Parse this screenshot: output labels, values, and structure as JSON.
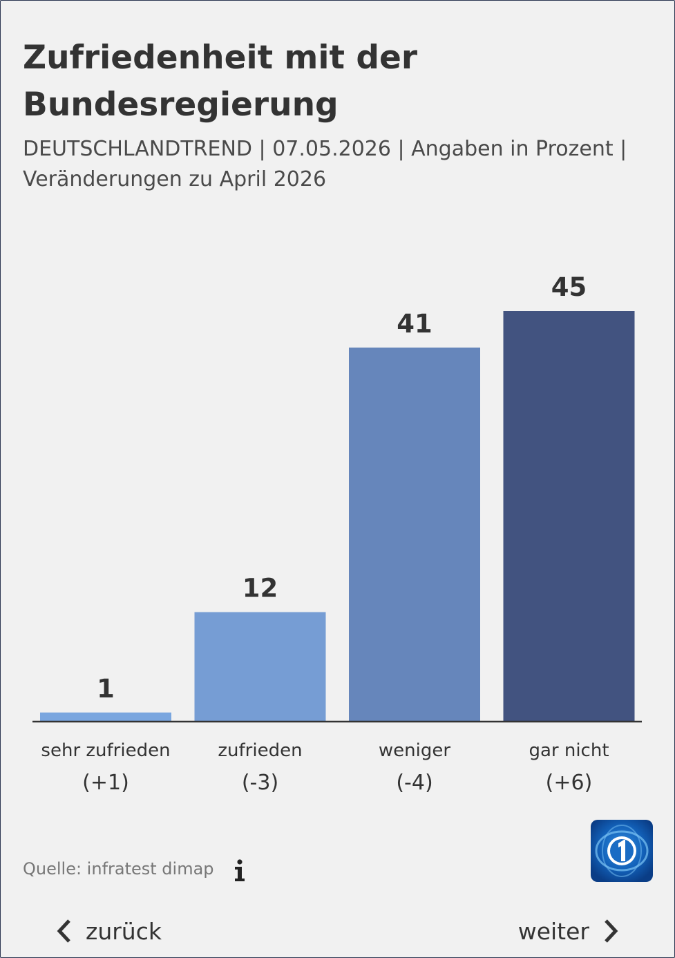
{
  "header": {
    "title": "Zufriedenheit mit der Bundesregierung",
    "subtitle": "DEUTSCHLANDTREND | 07.05.2026 | Angaben in Prozent | Veränderungen zu April 2026"
  },
  "chart_data": {
    "type": "bar",
    "categories": [
      "sehr zufrieden",
      "zufrieden",
      "weniger",
      "gar nicht"
    ],
    "changes": [
      "(+1)",
      "(-3)",
      "(-4)",
      "(+6)"
    ],
    "values": [
      1,
      12,
      41,
      45
    ],
    "value_labels": [
      "1",
      "12",
      "41",
      "45"
    ],
    "colors": [
      "#7aa6df",
      "#769dd4",
      "#6686bb",
      "#425380"
    ],
    "grid": false,
    "legend": "none"
  },
  "footer": {
    "source": "Quelle: infratest dimap",
    "info_icon": "info-icon",
    "logo": "tagesschau-logo"
  },
  "navigation": {
    "back_label": "zurück",
    "next_label": "weiter"
  }
}
